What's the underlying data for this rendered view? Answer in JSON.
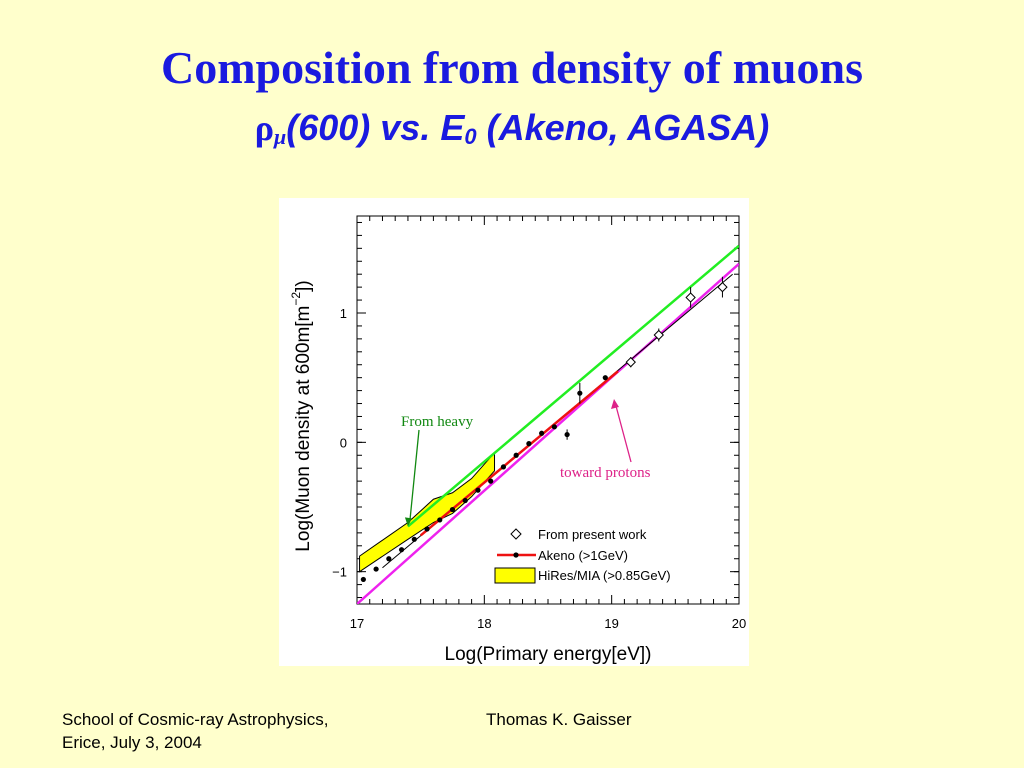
{
  "slide": {
    "title": "Composition from density of muons",
    "subtitle_rho": "ρ",
    "subtitle_mu": "μ",
    "subtitle_rest": "(600) vs. E",
    "subtitle_sub0": "0",
    "subtitle_tail": " (Akeno, AGASA)"
  },
  "footer": {
    "left_line1": "School of Cosmic-ray Astrophysics,",
    "left_line2": "Erice, July 3, 2004",
    "center": "Thomas K. Gaisser"
  },
  "colors": {
    "title": "#1a1adf",
    "heavy_line": "#22ee22",
    "proton_line": "#ee22ee",
    "akeno_line": "#ee1111",
    "hires_band": "#ffff00",
    "annotation_heavy": "#118811",
    "annotation_proton": "#dd2288"
  },
  "chart_data": {
    "type": "scatter",
    "xlabel": "Log(Primary energy[eV])",
    "ylabel": "Log(Muon density at 600m[m",
    "ylabel_sup": "−2",
    "ylabel_end": "])",
    "xlim": [
      17,
      20
    ],
    "ylim": [
      -1.25,
      1.75
    ],
    "x_ticks": [
      17,
      18,
      19,
      20
    ],
    "x_tick_labels": [
      "17",
      "18",
      "19",
      "20"
    ],
    "y_ticks": [
      -1,
      0,
      1
    ],
    "y_tick_labels": [
      "−1",
      "0",
      "1"
    ],
    "legend": [
      {
        "label": "From present work",
        "marker": "diamond"
      },
      {
        "label": "Akeno (>1GeV)",
        "marker": "line-dot"
      },
      {
        "label": "HiRes/MIA (>0.85GeV)",
        "marker": "band"
      }
    ],
    "annotations": [
      {
        "text": "From heavy"
      },
      {
        "text": "toward protons"
      }
    ],
    "series": [
      {
        "name": "From present work",
        "points": [
          [
            19.15,
            0.62
          ],
          [
            19.37,
            0.83
          ],
          [
            19.62,
            1.12
          ],
          [
            19.87,
            1.2
          ]
        ],
        "err": [
          0.04,
          0.05,
          0.08,
          0.08
        ]
      },
      {
        "name": "Akeno (>1GeV)",
        "points": [
          [
            17.05,
            -1.06
          ],
          [
            17.15,
            -0.98
          ],
          [
            17.25,
            -0.9
          ],
          [
            17.35,
            -0.83
          ],
          [
            17.45,
            -0.75
          ],
          [
            17.55,
            -0.67
          ],
          [
            17.65,
            -0.6
          ],
          [
            17.75,
            -0.52
          ],
          [
            17.85,
            -0.45
          ],
          [
            17.95,
            -0.37
          ],
          [
            18.05,
            -0.3
          ],
          [
            18.15,
            -0.19
          ],
          [
            18.25,
            -0.1
          ],
          [
            18.35,
            -0.01
          ],
          [
            18.45,
            0.07
          ],
          [
            18.55,
            0.12
          ],
          [
            18.65,
            0.06
          ],
          [
            18.75,
            0.38
          ],
          [
            18.95,
            0.5
          ]
        ],
        "fit_line": [
          [
            17.5,
            -0.72
          ],
          [
            19.05,
            0.55
          ]
        ]
      },
      {
        "name": "HiRes/MIA (>0.85GeV)",
        "band_upper": [
          [
            17.02,
            -0.88
          ],
          [
            17.4,
            -0.62
          ],
          [
            17.6,
            -0.44
          ],
          [
            17.75,
            -0.39
          ],
          [
            17.9,
            -0.28
          ],
          [
            18.08,
            -0.08
          ]
        ],
        "band_lower": [
          [
            17.02,
            -1.0
          ],
          [
            17.4,
            -0.75
          ],
          [
            17.6,
            -0.62
          ],
          [
            17.75,
            -0.55
          ],
          [
            17.9,
            -0.42
          ],
          [
            18.08,
            -0.22
          ]
        ]
      },
      {
        "name": "From heavy",
        "line": [
          [
            17.4,
            -0.65
          ],
          [
            20,
            1.52
          ]
        ]
      },
      {
        "name": "toward protons",
        "line": [
          [
            17,
            -1.25
          ],
          [
            20,
            1.38
          ]
        ]
      }
    ]
  }
}
